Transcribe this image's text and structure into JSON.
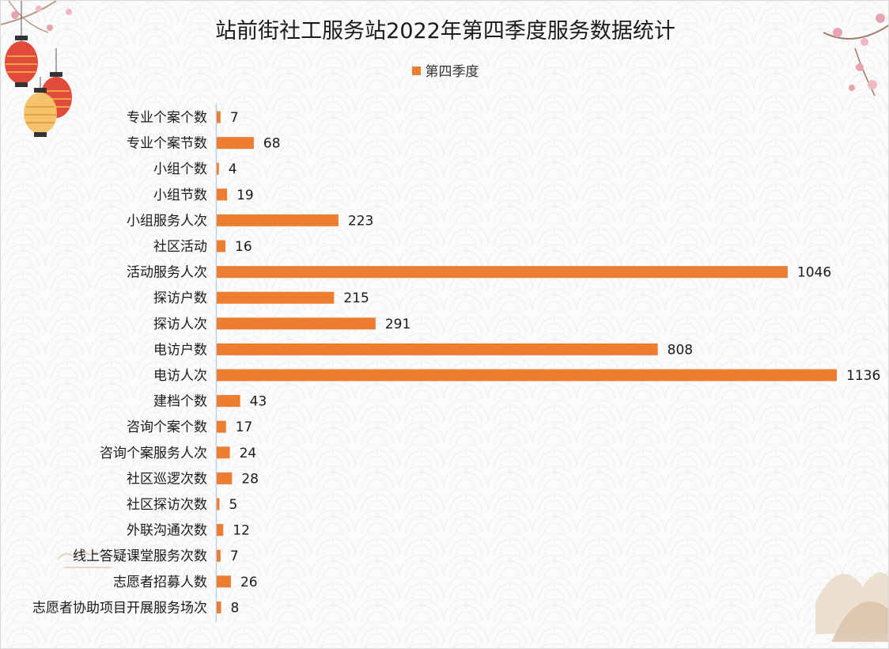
{
  "chart_data": {
    "type": "bar",
    "orientation": "horizontal",
    "title": "站前街社工服务站2022年第四季度服务数据统计",
    "legend_position": "top",
    "grid": false,
    "xlim": [
      0,
      1136
    ],
    "categories": [
      "专业个案个数",
      "专业个案节数",
      "小组个数",
      "小组节数",
      "小组服务人次",
      "社区活动",
      "活动服务人次",
      "探访户数",
      "探访人次",
      "电访户数",
      "电访人次",
      "建档个数",
      "咨询个案个数",
      "咨询个案服务人次",
      "社区巡逻次数",
      "社区探访次数",
      "外联沟通次数",
      "线上答疑课堂服务次数",
      "志愿者招募人数",
      "志愿者协助项目开展服务场次"
    ],
    "series": [
      {
        "name": "第四季度",
        "color": "#ED7D31",
        "values": [
          7,
          68,
          4,
          19,
          223,
          16,
          1046,
          215,
          291,
          808,
          1136,
          43,
          17,
          24,
          28,
          5,
          12,
          7,
          26,
          8
        ]
      }
    ]
  }
}
